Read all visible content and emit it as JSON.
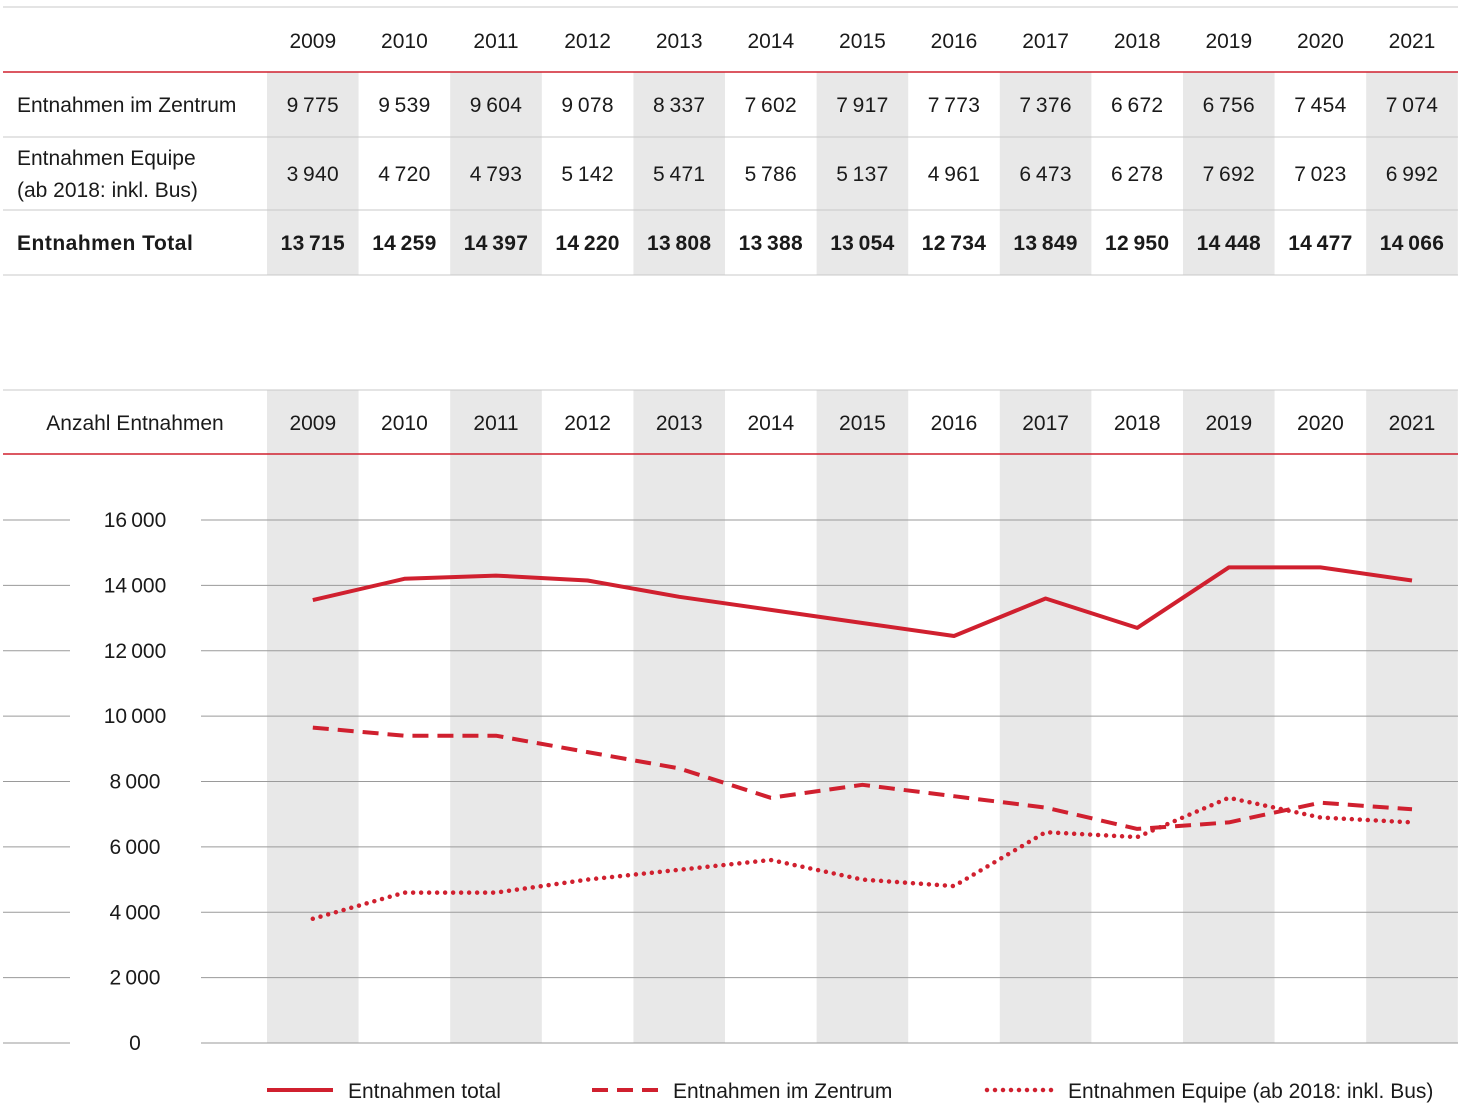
{
  "colors": {
    "accent": "#d0202f",
    "stripe": "#e8e8e8",
    "grid": "#9a9a9a",
    "divider": "#c9c9c9"
  },
  "years": [
    "2009",
    "2010",
    "2011",
    "2012",
    "2013",
    "2014",
    "2015",
    "2016",
    "2017",
    "2018",
    "2019",
    "2020",
    "2021"
  ],
  "table": {
    "rows": [
      {
        "label": [
          "Entnahmen im Zentrum"
        ],
        "bold": false,
        "values": [
          "9775",
          "9539",
          "9604",
          "9078",
          "8337",
          "7602",
          "7917",
          "7773",
          "7376",
          "6672",
          "6756",
          "7454",
          "7074"
        ]
      },
      {
        "label": [
          "Entnahmen Equipe",
          "(ab 2018: inkl. Bus)"
        ],
        "bold": false,
        "values": [
          "3940",
          "4720",
          "4793",
          "5142",
          "5471",
          "5786",
          "5137",
          "4961",
          "6473",
          "6278",
          "7692",
          "7023",
          "6992"
        ]
      },
      {
        "label": [
          "Entnahmen Total"
        ],
        "bold": true,
        "values": [
          "13715",
          "14259",
          "14397",
          "14220",
          "13808",
          "13388",
          "13054",
          "12734",
          "13849",
          "12950",
          "14448",
          "14477",
          "14066"
        ]
      }
    ]
  },
  "chart_header_label": "Anzahl Entnahmen",
  "chart_data": {
    "type": "line",
    "x": [
      "2009",
      "2010",
      "2011",
      "2012",
      "2013",
      "2014",
      "2015",
      "2016",
      "2017",
      "2018",
      "2019",
      "2020",
      "2021"
    ],
    "ylim": [
      0,
      16000
    ],
    "yticks": [
      0,
      2000,
      4000,
      6000,
      8000,
      10000,
      12000,
      14000,
      16000
    ],
    "ytick_labels": [
      "0",
      "2000",
      "4000",
      "6000",
      "8000",
      "10000",
      "12000",
      "14000",
      "16000"
    ],
    "grid": true,
    "legend_position": "bottom",
    "series": [
      {
        "name": "Entnahmen total",
        "style": "solid",
        "values": [
          13550,
          14200,
          14300,
          14150,
          13650,
          13250,
          12850,
          12450,
          13600,
          12700,
          14550,
          14550,
          14150
        ]
      },
      {
        "name": "Entnahmen im Zentrum",
        "style": "dashed",
        "values": [
          9650,
          9400,
          9400,
          8900,
          8400,
          7500,
          7900,
          7550,
          7200,
          6550,
          6750,
          7350,
          7150
        ]
      },
      {
        "name": "Entnahmen Equipe (ab 2018: inkl. Bus)",
        "style": "dotted",
        "values": [
          3800,
          4600,
          4600,
          5000,
          5300,
          5600,
          5000,
          4800,
          6450,
          6300,
          7500,
          6900,
          6750
        ]
      }
    ]
  }
}
